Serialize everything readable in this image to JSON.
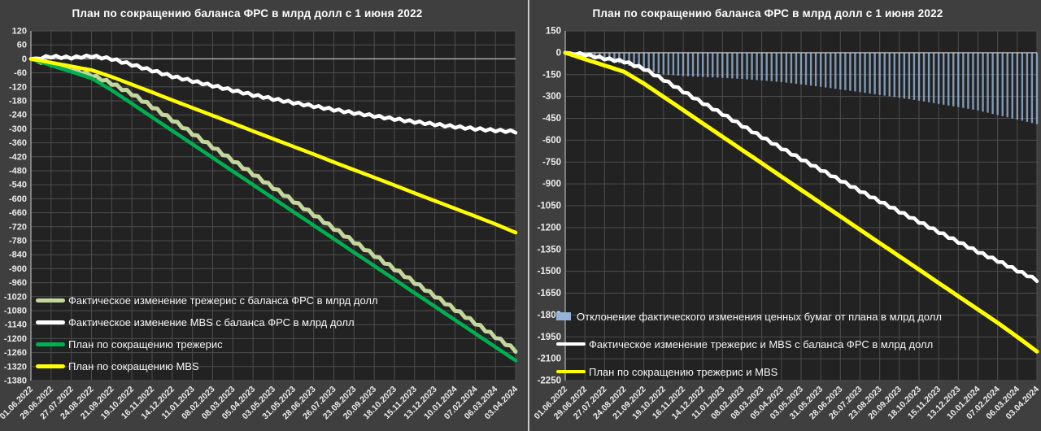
{
  "page": {
    "background": "#3f3f3f",
    "divider_color": "#c9c9c9"
  },
  "chart_data": [
    {
      "id": "fed-balance-by-asset",
      "type": "line",
      "title": "План по сокращению баланса ФРС в млрд долл с 1 июня 2022",
      "ylabel": "",
      "xlabel": "",
      "y_axis": {
        "max": 120,
        "min": -1380,
        "step": 60
      },
      "grid": true,
      "zero_line": true,
      "legend_position": "inside-bottom-left",
      "x_tick_rotation": 45,
      "categories": [
        "01.06.2022",
        "29.06.2022",
        "27.07.2022",
        "24.08.2022",
        "21.09.2022",
        "19.10.2022",
        "16.11.2022",
        "14.12.2022",
        "11.01.2023",
        "08.02.2023",
        "08.03.2023",
        "05.04.2023",
        "03.05.2023",
        "31.05.2023",
        "28.06.2023",
        "26.07.2023",
        "23.08.2023",
        "20.09.2023",
        "18.10.2023",
        "15.11.2023",
        "13.12.2023",
        "10.01.2024",
        "07.02.2024",
        "06.03.2024",
        "03.04.2024"
      ],
      "series": [
        {
          "name": "Фактическое изменение трежерис с баланса ФРС в млрд долл",
          "type": "line",
          "color": "#c3d69b",
          "width": 5,
          "jag": 10,
          "values": [
            0,
            -22,
            -45,
            -70,
            -105,
            -150,
            -205,
            -262,
            -320,
            -378,
            -436,
            -494,
            -552,
            -610,
            -668,
            -727,
            -785,
            -843,
            -901,
            -959,
            -1017,
            -1075,
            -1133,
            -1192,
            -1250
          ]
        },
        {
          "name": "Фактическое изменение MBS с баланса ФРС в млрд долл",
          "type": "line",
          "color": "#ffffff",
          "width": 4.5,
          "jag": 8,
          "values": [
            0,
            10,
            5,
            12,
            0,
            -25,
            -50,
            -75,
            -95,
            -115,
            -135,
            -155,
            -172,
            -188,
            -203,
            -218,
            -232,
            -245,
            -258,
            -270,
            -281,
            -291,
            -300,
            -307,
            -312
          ]
        },
        {
          "name": "План по сокращению трежерис",
          "type": "line",
          "color": "#00b050",
          "width": 4.5,
          "jag": 0,
          "values": [
            0,
            -28,
            -55,
            -83,
            -134,
            -192,
            -250,
            -308,
            -366,
            -424,
            -482,
            -540,
            -598,
            -656,
            -714,
            -772,
            -830,
            -888,
            -946,
            -1004,
            -1062,
            -1120,
            -1178,
            -1236,
            -1294
          ]
        },
        {
          "name": "План по сокращению MBS",
          "type": "line",
          "color": "#ffff00",
          "width": 4.5,
          "jag": 0,
          "values": [
            0,
            -16,
            -32,
            -48,
            -77,
            -110,
            -143,
            -177,
            -210,
            -243,
            -276,
            -310,
            -343,
            -376,
            -409,
            -443,
            -476,
            -509,
            -542,
            -576,
            -609,
            -642,
            -675,
            -709,
            -745
          ]
        }
      ]
    },
    {
      "id": "fed-balance-total-vs-plan",
      "type": "line",
      "title": "План по сокращению баланса ФРС в млрд долл с 1 июня 2022",
      "ylabel": "",
      "xlabel": "",
      "y_axis": {
        "max": 150,
        "min": -2250,
        "step": 150
      },
      "grid": true,
      "zero_line": true,
      "legend_position": "inside-bottom-left",
      "x_tick_rotation": 45,
      "categories": [
        "01.06.2022",
        "29.06.2022",
        "27.07.2022",
        "24.08.2022",
        "21.09.2022",
        "19.10.2022",
        "16.11.2022",
        "14.12.2022",
        "11.01.2023",
        "08.02.2023",
        "08.03.2023",
        "05.04.2023",
        "03.05.2023",
        "31.05.2023",
        "28.06.2023",
        "26.07.2023",
        "23.08.2023",
        "20.09.2023",
        "18.10.2023",
        "15.11.2023",
        "13.12.2023",
        "10.01.2024",
        "07.02.2024",
        "06.03.2024",
        "03.04.2024"
      ],
      "series": [
        {
          "name": "Отклонение фактического изменения ценных бумаг от плана в млрд долл",
          "type": "bar",
          "color": "#95b3d7",
          "width": 2.4,
          "jag": 0,
          "values": [
            0,
            -25,
            -50,
            -80,
            -120,
            -148,
            -160,
            -166,
            -172,
            -180,
            -190,
            -201,
            -217,
            -234,
            -252,
            -270,
            -289,
            -309,
            -329,
            -351,
            -373,
            -396,
            -428,
            -458,
            -490
          ]
        },
        {
          "name": "Фактическое изменение трежерис и MBS с баланса ФРС в млрд долл",
          "type": "line",
          "color": "#ffffff",
          "width": 4.5,
          "jag": 13,
          "values": [
            0,
            -12,
            -40,
            -60,
            -110,
            -185,
            -265,
            -345,
            -420,
            -500,
            -578,
            -655,
            -730,
            -803,
            -876,
            -948,
            -1020,
            -1090,
            -1160,
            -1230,
            -1298,
            -1366,
            -1428,
            -1495,
            -1560
          ]
        },
        {
          "name": "План по сокращению трежерис и MBS",
          "type": "line",
          "color": "#ffff00",
          "width": 5,
          "jag": 0,
          "values": [
            0,
            -44,
            -87,
            -131,
            -211,
            -302,
            -393,
            -485,
            -576,
            -667,
            -758,
            -850,
            -941,
            -1032,
            -1123,
            -1215,
            -1306,
            -1397,
            -1488,
            -1580,
            -1671,
            -1762,
            -1853,
            -1950,
            -2050
          ]
        }
      ]
    }
  ]
}
